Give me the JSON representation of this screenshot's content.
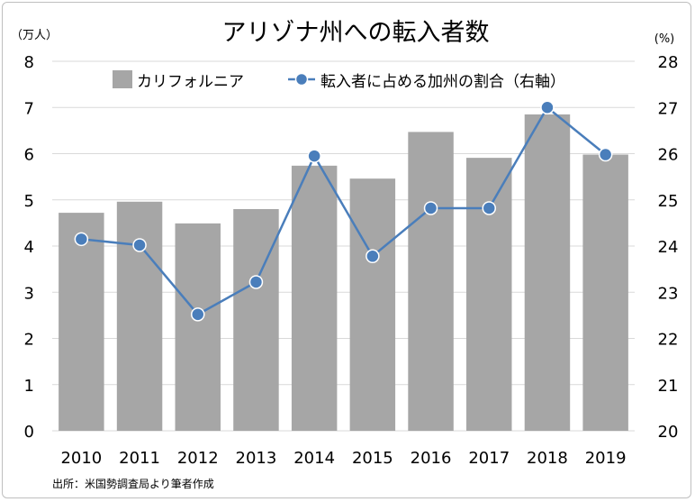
{
  "chart_data": {
    "type": "bar+line",
    "title": "アリゾナ州への転入者数",
    "left_unit": "（万人）",
    "right_unit": "(%)",
    "categories": [
      "2010",
      "2011",
      "2012",
      "2013",
      "2014",
      "2015",
      "2016",
      "2017",
      "2018",
      "2019"
    ],
    "ylim_left": [
      0,
      8
    ],
    "yticks_left": [
      "0",
      "1",
      "2",
      "3",
      "4",
      "5",
      "6",
      "7",
      "8"
    ],
    "ylim_right": [
      20,
      28
    ],
    "yticks_right": [
      "20",
      "21",
      "22",
      "23",
      "24",
      "25",
      "26",
      "27",
      "28"
    ],
    "grid": true,
    "legend_position": "top",
    "series": [
      {
        "name": "カリフォルニア",
        "type": "bar",
        "axis": "left",
        "color": "#a6a6a6",
        "values": [
          4.72,
          4.96,
          4.49,
          4.8,
          5.74,
          5.46,
          6.47,
          5.91,
          6.85,
          5.98
        ]
      },
      {
        "name": "転入者に占める加州の割合（右軸）",
        "type": "line",
        "axis": "right",
        "color": "#4a7ebb",
        "values": [
          24.15,
          24.02,
          22.52,
          23.22,
          25.95,
          23.78,
          24.82,
          24.82,
          27.0,
          25.98
        ]
      }
    ],
    "source": "出所：米国勢調査局より筆者作成"
  }
}
